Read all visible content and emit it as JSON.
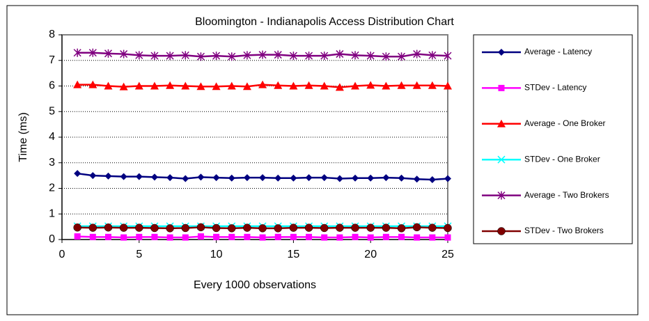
{
  "chart_data": {
    "type": "line",
    "title": "Bloomington - Indianapolis Access Distribution Chart",
    "x_label": "Every 1000 observations",
    "y_label": "Time (ms)",
    "x": [
      1,
      2,
      3,
      4,
      5,
      6,
      7,
      8,
      9,
      10,
      11,
      12,
      13,
      14,
      15,
      16,
      17,
      18,
      19,
      20,
      21,
      22,
      23,
      24,
      25
    ],
    "xlim": [
      0,
      25
    ],
    "xticks": [
      0,
      5,
      10,
      15,
      20,
      25
    ],
    "ylim": [
      0,
      8
    ],
    "yticks": [
      0,
      1,
      2,
      3,
      4,
      5,
      6,
      7,
      8
    ],
    "grid": true,
    "legend": "right",
    "series": [
      {
        "name": "Average - Latency",
        "color": "#000080",
        "marker": "diamond",
        "values": [
          2.58,
          2.5,
          2.48,
          2.46,
          2.46,
          2.44,
          2.42,
          2.38,
          2.44,
          2.42,
          2.4,
          2.42,
          2.42,
          2.4,
          2.4,
          2.42,
          2.42,
          2.38,
          2.4,
          2.4,
          2.42,
          2.4,
          2.36,
          2.34,
          2.38
        ]
      },
      {
        "name": "STDev - Latency",
        "color": "#ff00ff",
        "marker": "square",
        "values": [
          0.12,
          0.1,
          0.1,
          0.08,
          0.1,
          0.1,
          0.08,
          0.08,
          0.12,
          0.1,
          0.1,
          0.1,
          0.08,
          0.1,
          0.1,
          0.1,
          0.08,
          0.08,
          0.1,
          0.08,
          0.1,
          0.1,
          0.08,
          0.08,
          0.08
        ]
      },
      {
        "name": "Average - One Broker",
        "color": "#ff0000",
        "marker": "triangle",
        "values": [
          6.05,
          6.05,
          6.0,
          5.97,
          6.0,
          6.0,
          6.02,
          6.0,
          5.98,
          5.98,
          6.0,
          5.98,
          6.05,
          6.02,
          6.0,
          6.02,
          6.0,
          5.95,
          6.0,
          6.03,
          6.0,
          6.02,
          6.02,
          6.02,
          6.0
        ]
      },
      {
        "name": "STDev - One Broker",
        "color": "#00ffff",
        "marker": "x",
        "values": [
          0.52,
          0.52,
          0.52,
          0.52,
          0.52,
          0.52,
          0.52,
          0.52,
          0.52,
          0.52,
          0.52,
          0.52,
          0.52,
          0.52,
          0.52,
          0.52,
          0.52,
          0.52,
          0.52,
          0.52,
          0.52,
          0.52,
          0.52,
          0.52,
          0.52
        ]
      },
      {
        "name": "Average - Two Brokers",
        "color": "#800080",
        "marker": "asterisk",
        "values": [
          7.3,
          7.3,
          7.27,
          7.25,
          7.2,
          7.18,
          7.18,
          7.2,
          7.15,
          7.18,
          7.15,
          7.2,
          7.22,
          7.22,
          7.18,
          7.18,
          7.18,
          7.25,
          7.2,
          7.18,
          7.15,
          7.15,
          7.25,
          7.2,
          7.18
        ]
      },
      {
        "name": "STDev - Two Brokers",
        "color": "#800000",
        "marker": "circle",
        "values": [
          0.47,
          0.46,
          0.47,
          0.46,
          0.46,
          0.45,
          0.44,
          0.45,
          0.48,
          0.45,
          0.44,
          0.46,
          0.44,
          0.44,
          0.46,
          0.46,
          0.45,
          0.46,
          0.46,
          0.46,
          0.46,
          0.44,
          0.48,
          0.46,
          0.45
        ]
      }
    ]
  }
}
